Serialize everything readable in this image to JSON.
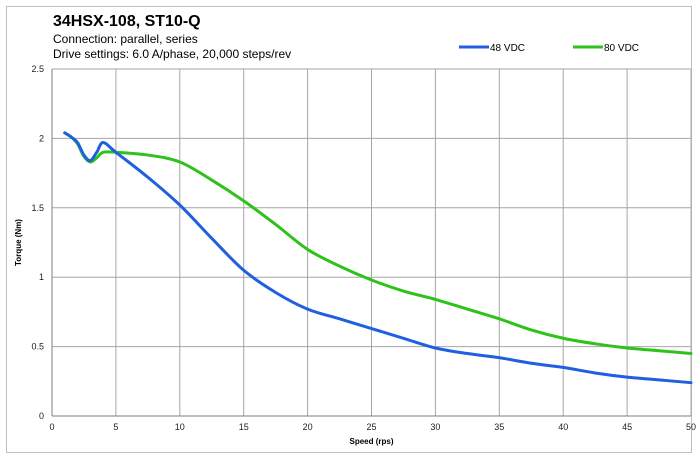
{
  "chart_data": {
    "type": "line",
    "title": "34HSX-108, ST10-Q",
    "subtitle_lines": [
      "Connection: parallel, series",
      "Drive settings: 6.0 A/phase, 20,000 steps/rev"
    ],
    "xlabel": "Speed (rps)",
    "ylabel": "Torque (Nm)",
    "xlim": [
      0,
      50
    ],
    "ylim": [
      0,
      2.5
    ],
    "xticks": [
      "0",
      "5",
      "10",
      "15",
      "20",
      "25",
      "30",
      "35",
      "40",
      "45",
      "50"
    ],
    "yticks": [
      "0",
      "0.5",
      "1",
      "1.5",
      "2",
      "2.5"
    ],
    "grid": true,
    "legend": "top-right",
    "series": [
      {
        "name": "48 VDC",
        "color": "#1f5fe0",
        "x": [
          1,
          1.5,
          2,
          2.5,
          3,
          3.5,
          4,
          5,
          7.5,
          10,
          12.5,
          15,
          17.5,
          20,
          22.5,
          25,
          27.5,
          30,
          32.5,
          35,
          37.5,
          40,
          42.5,
          45,
          47.5,
          50
        ],
        "y": [
          2.04,
          2.01,
          1.97,
          1.88,
          1.84,
          1.9,
          1.97,
          1.9,
          1.72,
          1.52,
          1.28,
          1.05,
          0.89,
          0.77,
          0.7,
          0.63,
          0.56,
          0.49,
          0.45,
          0.42,
          0.38,
          0.35,
          0.31,
          0.28,
          0.26,
          0.24
        ]
      },
      {
        "name": "80 VDC",
        "color": "#2ec21b",
        "x": [
          1,
          1.5,
          2,
          2.5,
          3,
          3.5,
          4,
          5,
          7.5,
          10,
          12.5,
          15,
          17.5,
          20,
          22.5,
          25,
          27.5,
          30,
          32.5,
          35,
          37.5,
          40,
          42.5,
          45,
          47.5,
          50
        ],
        "y": [
          2.04,
          2.01,
          1.96,
          1.87,
          1.83,
          1.86,
          1.9,
          1.9,
          1.88,
          1.83,
          1.7,
          1.55,
          1.38,
          1.2,
          1.08,
          0.98,
          0.9,
          0.84,
          0.77,
          0.7,
          0.62,
          0.56,
          0.52,
          0.49,
          0.47,
          0.45
        ]
      }
    ]
  }
}
